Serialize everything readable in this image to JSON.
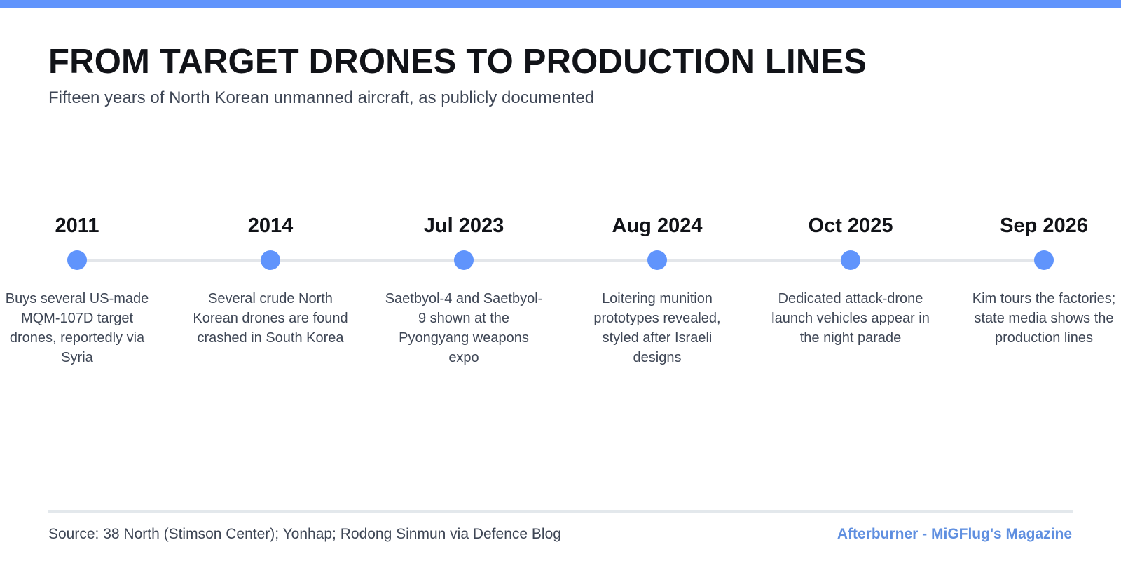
{
  "colors": {
    "accent": "#6094fc",
    "credit": "#5f8fe0"
  },
  "header": {
    "title": "FROM TARGET DRONES TO PRODUCTION LINES",
    "subtitle": "Fifteen years of North Korean unmanned aircraft, as publicly documented"
  },
  "timeline": {
    "events": [
      {
        "date": "2011",
        "text": "Buys several US-made MQM-107D target drones, reportedly via Syria"
      },
      {
        "date": "2014",
        "text": "Several crude North Korean drones are found crashed in South Korea"
      },
      {
        "date": "Jul 2023",
        "text": "Saetbyol-4 and Saetbyol-9 shown at the Pyongyang weapons expo"
      },
      {
        "date": "Aug 2024",
        "text": "Loitering munition prototypes revealed, styled after Israeli designs"
      },
      {
        "date": "Oct 2025",
        "text": "Dedicated attack-drone launch vehicles appear in the night parade"
      },
      {
        "date": "Sep 2026",
        "text": "Kim tours the factories; state media shows the production lines"
      }
    ]
  },
  "footer": {
    "source": "Source: 38 North (Stimson Center); Yonhap; Rodong Sinmun via Defence Blog",
    "credit": "Afterburner - MiGFlug's Magazine"
  }
}
